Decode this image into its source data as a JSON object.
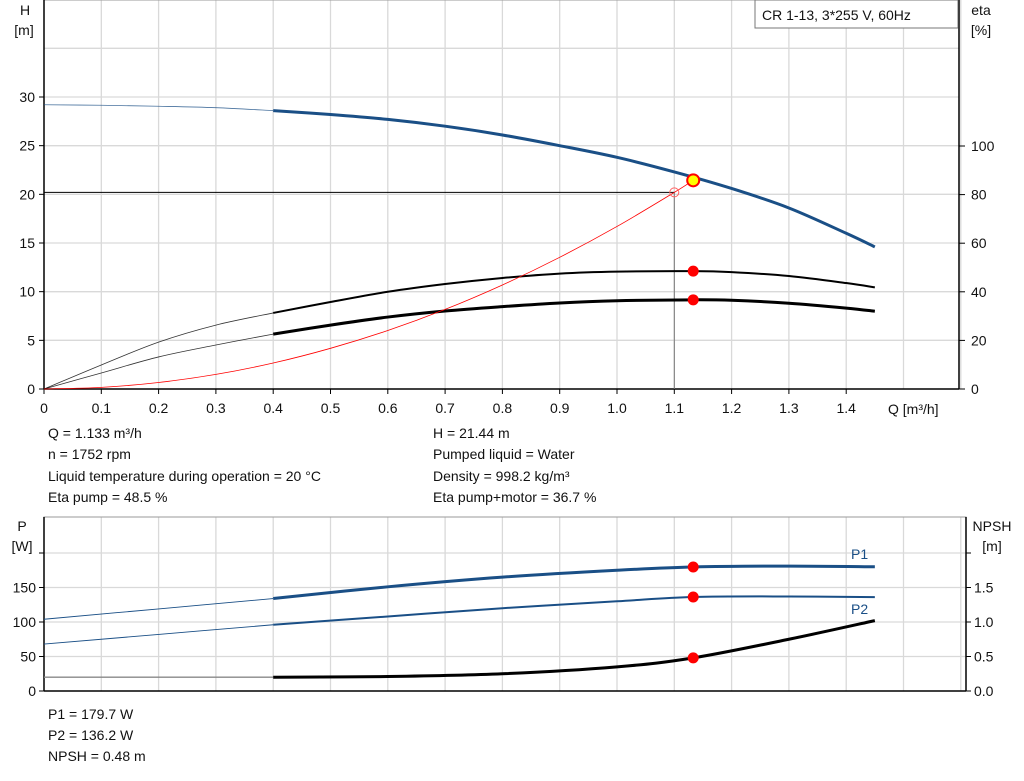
{
  "chart_data": [
    {
      "type": "line",
      "legend_box": "CR 1-13, 3*255 V, 60Hz",
      "xlabel": "Q [m³/h]",
      "ylabel": [
        "H",
        "[m]"
      ],
      "y2label": [
        "eta",
        "[%]"
      ],
      "xlim": [
        0,
        1.6
      ],
      "ylim": [
        0,
        35
      ],
      "y2lim": [
        0,
        140
      ],
      "grid": true,
      "xticks": [
        "0",
        "0.1",
        "0.2",
        "0.3",
        "0.4",
        "0.5",
        "0.6",
        "0.7",
        "0.8",
        "0.9",
        "1.0",
        "1.1",
        "1.2",
        "1.3",
        "1.4"
      ],
      "yticks": [
        "0",
        "5",
        "10",
        "15",
        "20",
        "25",
        "30"
      ],
      "y2ticks": [
        "0",
        "20",
        "40",
        "60",
        "80",
        "100"
      ],
      "series": [
        {
          "axis": "H",
          "color": "#1a4f86",
          "x": [
            0,
            0.1,
            0.2,
            0.3,
            0.4,
            0.5,
            0.6,
            0.7,
            0.8,
            0.9,
            1.0,
            1.1,
            1.2,
            1.3,
            1.4,
            1.45
          ],
          "y": [
            29.2,
            29.15,
            29.05,
            28.9,
            28.6,
            28.2,
            27.7,
            27.0,
            26.1,
            25.0,
            23.8,
            22.3,
            20.6,
            18.6,
            16.0,
            14.6
          ]
        },
        {
          "axis": "eta",
          "color": "#000000",
          "x": [
            0,
            0.1,
            0.2,
            0.3,
            0.4,
            0.5,
            0.6,
            0.7,
            0.8,
            0.9,
            1.0,
            1.133,
            1.2,
            1.3,
            1.4,
            1.45
          ],
          "y": [
            0,
            9.9,
            19.3,
            26.3,
            31.3,
            35.8,
            40,
            43.2,
            45.7,
            47.5,
            48.3,
            48.5,
            48.1,
            46.5,
            43.6,
            41.8
          ]
        },
        {
          "axis": "eta",
          "color": "#000000",
          "x": [
            0,
            0.1,
            0.2,
            0.3,
            0.4,
            0.5,
            0.6,
            0.7,
            0.8,
            0.9,
            1.0,
            1.133,
            1.2,
            1.3,
            1.4,
            1.45
          ],
          "y": [
            0,
            6.6,
            13.2,
            18.1,
            22.6,
            26.3,
            29.6,
            32.1,
            33.9,
            35.4,
            36.3,
            36.7,
            36.5,
            35.3,
            33.3,
            32.0
          ]
        },
        {
          "axis": "H",
          "color": "#ff0000",
          "type": "system",
          "x": [
            0,
            0.1,
            0.2,
            0.3,
            0.4,
            0.5,
            0.6,
            0.7,
            0.8,
            0.9,
            1.0,
            1.1,
            1.133
          ],
          "y": [
            0,
            0.17,
            0.67,
            1.5,
            2.67,
            4.18,
            6.01,
            8.18,
            10.69,
            13.53,
            16.7,
            20.2,
            21.44
          ]
        }
      ],
      "duty_point": {
        "Q": 1.133,
        "H": 21.44,
        "eta_pump": 48.5,
        "eta_total": 36.7
      },
      "reference_point": {
        "Q": 1.1,
        "H": 20.2
      },
      "thick_from_Q": 0.4
    },
    {
      "type": "line",
      "ylabel": [
        "P",
        "[W]"
      ],
      "y2label": [
        "NPSH",
        "[m]"
      ],
      "xlim": [
        0,
        1.6
      ],
      "ylim": [
        0,
        200
      ],
      "y2lim": [
        0,
        2.0
      ],
      "grid": true,
      "yticks": [
        "0",
        "50",
        "100",
        "150"
      ],
      "y2ticks": [
        "0.0",
        "0.5",
        "1.0",
        "1.5"
      ],
      "series": [
        {
          "name": "P1",
          "axis": "P",
          "color": "#1a4f86",
          "x": [
            0,
            0.2,
            0.4,
            0.6,
            0.8,
            1.0,
            1.133,
            1.3,
            1.45
          ],
          "y": [
            104,
            119,
            134,
            151,
            165,
            175,
            179.7,
            181,
            180
          ]
        },
        {
          "name": "P2",
          "axis": "P",
          "color": "#1a4f86",
          "x": [
            0,
            0.2,
            0.4,
            0.6,
            0.8,
            1.0,
            1.133,
            1.3,
            1.45
          ],
          "y": [
            68,
            82,
            96,
            108,
            120,
            130,
            136.2,
            137,
            136
          ]
        },
        {
          "axis": "NPSH",
          "color": "#000000",
          "x": [
            0,
            0.4,
            0.6,
            0.8,
            1.0,
            1.133,
            1.3,
            1.45
          ],
          "y": [
            0.2,
            0.2,
            0.21,
            0.25,
            0.35,
            0.48,
            0.75,
            1.02
          ]
        }
      ],
      "duty_point": {
        "Q": 1.133,
        "P1": 179.7,
        "P2": 136.2,
        "NPSH": 0.48
      },
      "thick_from_Q": 0.4
    }
  ],
  "info_top": {
    "left": [
      "Q = 1.133 m³/h",
      "n = 1752 rpm",
      "Liquid temperature during operation = 20 °C",
      "Eta pump = 48.5 %"
    ],
    "right": [
      "H = 21.44 m",
      "Pumped liquid = Water",
      "Density = 998.2 kg/m³",
      "Eta pump+motor = 36.7 %"
    ]
  },
  "info_bottom": [
    "P1 = 179.7 W",
    "P2 = 136.2 W",
    "NPSH = 0.48 m"
  ],
  "colors": {
    "blue": "#1a4f86",
    "grid": "#d9d9d9",
    "marker": "#ff0000",
    "duty_fill": "#ffff00"
  }
}
